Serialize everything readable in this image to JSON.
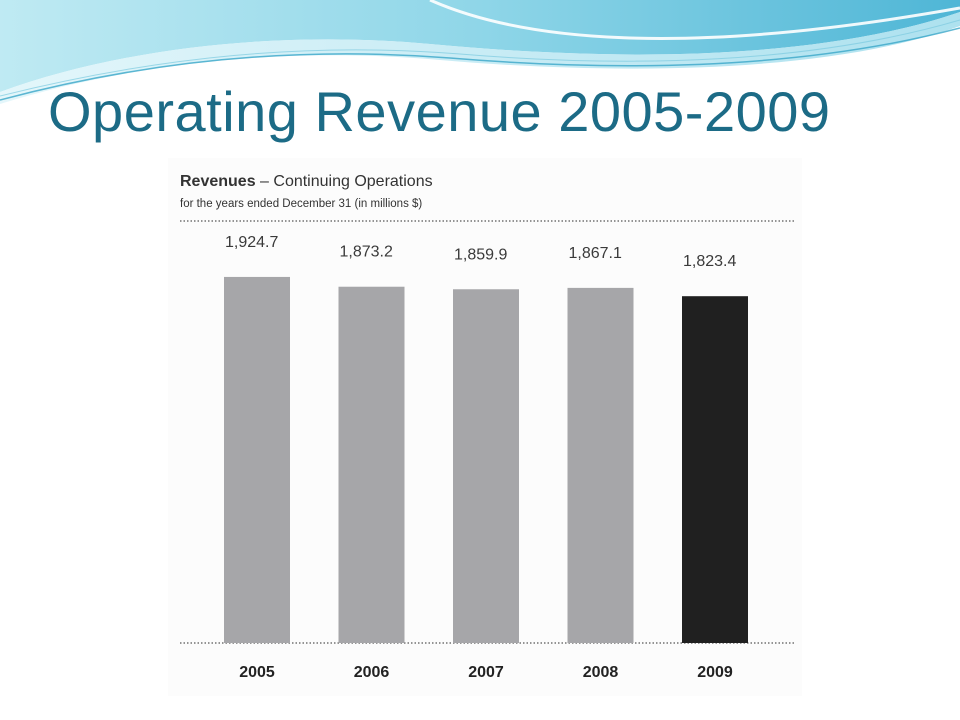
{
  "slide": {
    "title": "Operating Revenue 2005-2009"
  },
  "colors": {
    "title": "#1c6b86",
    "bar_default": "#a6a6a9",
    "bar_highlight": "#202020",
    "swoosh_light": "#a9e4ef",
    "swoosh_mid": "#5fc2da",
    "swoosh_dark": "#3aa6c8"
  },
  "chart_data": {
    "type": "bar",
    "title_bold": "Revenues",
    "title_rest": " – Continuing Operations",
    "subtitle": "for the years ended December 31 (in millions $)",
    "xlabel": "",
    "ylabel": "",
    "categories": [
      "2005",
      "2006",
      "2007",
      "2008",
      "2009"
    ],
    "values": [
      1924.7,
      1873.2,
      1859.9,
      1867.1,
      1823.4
    ],
    "value_labels": [
      "1,924.7",
      "1,873.2",
      "1,859.9",
      "1,867.1",
      "1,823.4"
    ],
    "highlight_index": 4,
    "ylim": [
      0,
      2550
    ],
    "grid": false,
    "legend": "none"
  }
}
